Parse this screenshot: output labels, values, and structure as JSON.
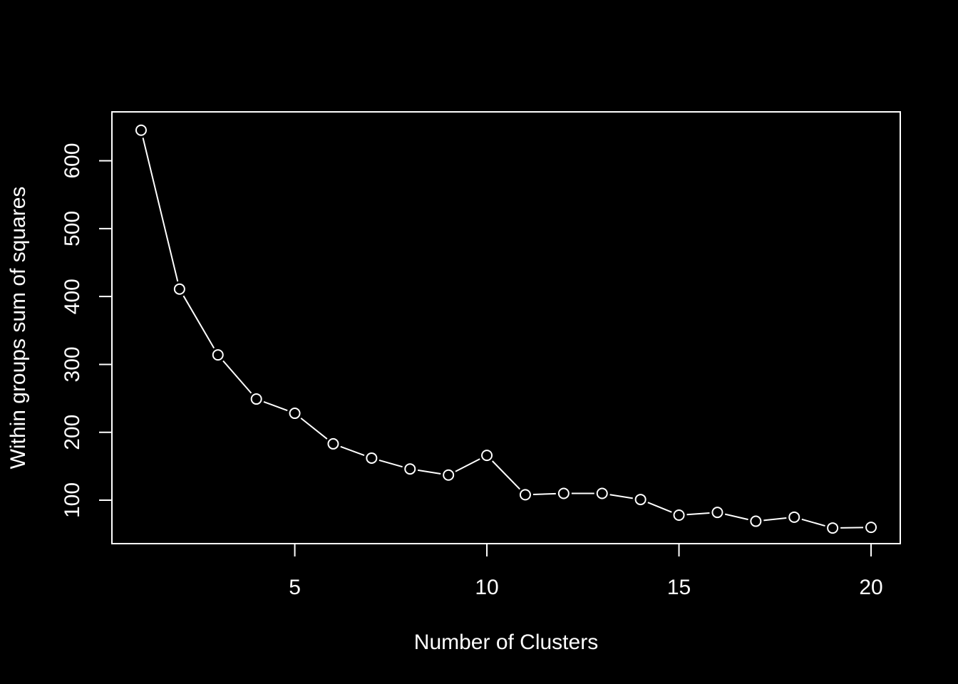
{
  "chart_data": {
    "type": "line",
    "title": "",
    "xlabel": "Number of Clusters",
    "ylabel": "Within groups sum of squares",
    "xlim": [
      0.24,
      20.76
    ],
    "ylim": [
      36,
      672
    ],
    "x_ticks": [
      5,
      10,
      15,
      20
    ],
    "y_ticks": [
      100,
      200,
      300,
      400,
      500,
      600
    ],
    "grid": false,
    "legend": "none",
    "marker": "open-circle",
    "line_style": "both",
    "colors": {
      "background": "#000000",
      "foreground": "#ffffff"
    },
    "series": [
      {
        "x": [
          1,
          2,
          3,
          4,
          5,
          6,
          7,
          8,
          9,
          10,
          11,
          12,
          13,
          14,
          15,
          16,
          17,
          18,
          19,
          20
        ],
        "values": [
          645,
          411,
          314,
          249,
          228,
          183,
          162,
          146,
          137,
          166,
          108,
          110,
          110,
          101,
          78,
          82,
          69,
          75,
          59,
          60
        ]
      }
    ]
  }
}
